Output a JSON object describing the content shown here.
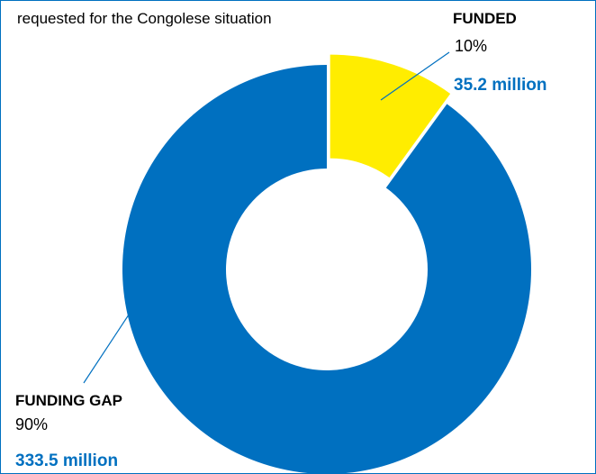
{
  "chart_data": {
    "type": "pie",
    "subtitle": "requested for the Congolese situation",
    "slices": [
      {
        "key": "funded",
        "label": "FUNDED",
        "value": 10,
        "percent_label": "10%",
        "amount_label": "35.2 million",
        "color": "#ffed00"
      },
      {
        "key": "gap",
        "label": "FUNDING GAP",
        "value": 90,
        "percent_label": "90%",
        "amount_label": "333.5 million",
        "color": "#0070c0"
      }
    ],
    "accent_color": "#0070c0",
    "donut": true,
    "exploded_slice": "funded"
  }
}
